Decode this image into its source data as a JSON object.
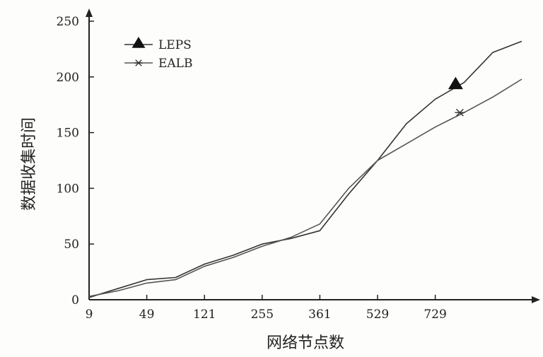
{
  "chart_data": {
    "type": "line",
    "title": "",
    "xlabel": "网络节点数",
    "ylabel": "数据收集时间",
    "x_ticks": [
      "9",
      "49",
      "121",
      "255",
      "361",
      "529",
      "729"
    ],
    "y_ticks": [
      "0",
      "50",
      "100",
      "150",
      "200",
      "250"
    ],
    "ylim": [
      0,
      250
    ],
    "grid": false,
    "legend_position": "top-left",
    "series": [
      {
        "name": "LEPS",
        "marker": "filled-triangle",
        "color": "#333333",
        "x": [
          0,
          0.5,
          1,
          1.5,
          2,
          2.5,
          3,
          3.5,
          4,
          4.5,
          5,
          5.5,
          6,
          6.5,
          7,
          7.5
        ],
        "values": [
          2,
          10,
          18,
          20,
          32,
          40,
          50,
          55,
          62,
          95,
          125,
          158,
          180,
          195,
          222,
          232
        ]
      },
      {
        "name": "EALB",
        "marker": "star",
        "color": "#555555",
        "x": [
          0,
          0.5,
          1,
          1.5,
          2,
          2.5,
          3,
          3.5,
          4,
          4.5,
          5,
          5.5,
          6,
          6.5,
          7,
          7.5
        ],
        "values": [
          3,
          8,
          15,
          18,
          30,
          38,
          48,
          56,
          68,
          100,
          125,
          140,
          155,
          168,
          182,
          198
        ]
      }
    ]
  }
}
